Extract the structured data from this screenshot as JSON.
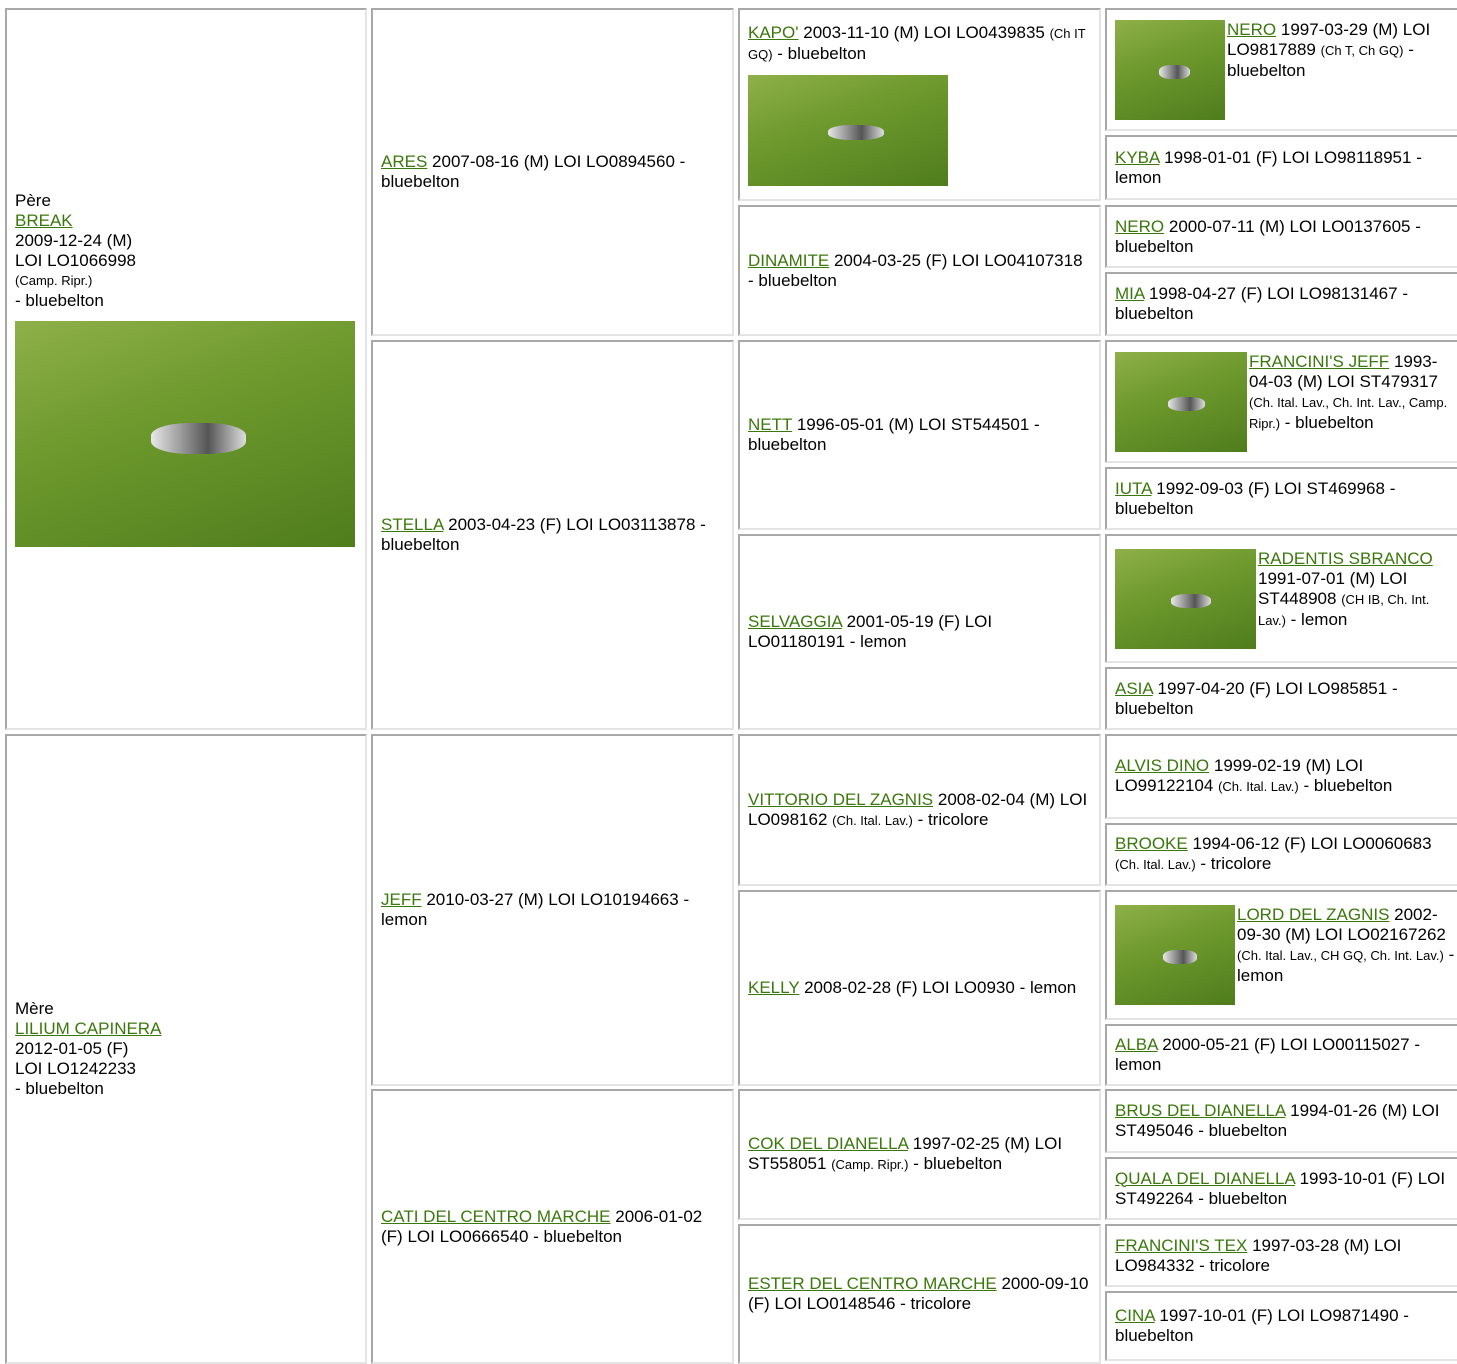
{
  "pedigree": {
    "parents": [
      {
        "label": "Père",
        "name": "BREAK",
        "date": "2009-12-24 (M)",
        "reg": "LOI LO1066998",
        "titles": "(Camp. Ripr.)",
        "color": "- bluebelton"
      },
      {
        "label": "Mère",
        "name": "LILIUM CAPINERA",
        "date": "2012-01-05 (F)",
        "reg": "LOI LO1242233",
        "color": "- bluebelton"
      }
    ],
    "grandparents": [
      {
        "name": "ARES",
        "date": "2007-08-16 (M)",
        "reg": "LOI LO0894560",
        "color": "- bluebelton"
      },
      {
        "name": "STELLA",
        "date": "2003-04-23 (F)",
        "reg": "LOI LO03113878",
        "color": "- bluebelton"
      },
      {
        "name": "JEFF",
        "date": "2010-03-27 (M)",
        "reg": "LOI LO10194663",
        "color": "- lemon"
      },
      {
        "name": "CATI DEL CENTRO MARCHE",
        "date": "2006-01-02 (F)",
        "reg": "LOI LO0666540",
        "color": "- bluebelton"
      }
    ],
    "great_grandparents": [
      {
        "name": "KAPO'",
        "date": "2003-11-10 (M)",
        "reg": "LOI LO0439835",
        "titles": "(Ch IT GQ)",
        "color": "- bluebelton"
      },
      {
        "name": "DINAMITE",
        "date": "2004-03-25 (F)",
        "reg": "LOI LO04107318",
        "color": "- bluebelton"
      },
      {
        "name": "NETT",
        "date": "1996-05-01 (M)",
        "reg": "LOI ST544501",
        "color": "- bluebelton"
      },
      {
        "name": "SELVAGGIA",
        "date": "2001-05-19 (F)",
        "reg": "LOI LO01180191",
        "color": "- lemon"
      },
      {
        "name": "VITTORIO DEL ZAGNIS",
        "date": "2008-02-04 (M)",
        "reg": "LOI LO098162",
        "titles": "(Ch. Ital. Lav.)",
        "color": "- tricolore"
      },
      {
        "name": "KELLY",
        "date": "2008-02-28 (F)",
        "reg": "LOI LO0930",
        "color": "- lemon"
      },
      {
        "name": "COK DEL DIANELLA",
        "date": "1997-02-25 (M)",
        "reg": "LOI ST558051",
        "titles": "(Camp. Ripr.)",
        "color": "- bluebelton"
      },
      {
        "name": "ESTER DEL CENTRO MARCHE",
        "date": "2000-09-10 (F)",
        "reg": "LOI LO0148546",
        "color": "- tricolore"
      }
    ],
    "great_great_grandparents": [
      {
        "name": "NERO",
        "date": "1997-03-29 (M)",
        "reg": "LOI LO9817889",
        "titles": "(Ch T, Ch GQ)",
        "color": "- bluebelton"
      },
      {
        "name": "KYBA",
        "date": "1998-01-01 (F)",
        "reg": "LOI LO98118951",
        "color": "- lemon"
      },
      {
        "name": "NERO",
        "date": "2000-07-11 (M)",
        "reg": "LOI LO0137605",
        "color": "- bluebelton"
      },
      {
        "name": "MIA",
        "date": "1998-04-27 (F)",
        "reg": "LOI LO98131467",
        "color": "- bluebelton"
      },
      {
        "name": "FRANCINI'S JEFF",
        "date": "1993-04-03 (M)",
        "reg": "LOI ST479317",
        "titles": "(Ch. Ital. Lav., Ch. Int. Lav., Camp. Ripr.)",
        "color": "- bluebelton"
      },
      {
        "name": "IUTA",
        "date": "1992-09-03 (F)",
        "reg": "LOI ST469968",
        "color": "- bluebelton"
      },
      {
        "name": "RADENTIS SBRANCO",
        "date": "1991-07-01 (M)",
        "reg": "LOI ST448908",
        "titles": "(CH IB, Ch. Int. Lav.)",
        "color": "- lemon"
      },
      {
        "name": "ASIA",
        "date": "1997-04-20 (F)",
        "reg": "LOI LO985851",
        "color": "- bluebelton"
      },
      {
        "name": "ALVIS DINO",
        "date": "1999-02-19 (M)",
        "reg": "LOI LO99122104",
        "titles": "(Ch. Ital. Lav.)",
        "color": "- bluebelton"
      },
      {
        "name": "BROOKE",
        "date": "1994-06-12 (F)",
        "reg": "LOI LO0060683",
        "titles": "(Ch. Ital. Lav.)",
        "color": "- tricolore"
      },
      {
        "name": "LORD DEL ZAGNIS",
        "date": "2002-09-30 (M)",
        "reg": "LOI LO02167262",
        "titles": "(Ch. Ital. Lav., CH GQ, Ch. Int. Lav.)",
        "color": "- lemon"
      },
      {
        "name": "ALBA",
        "date": "2000-05-21 (F)",
        "reg": "LOI LO00115027",
        "color": "- lemon"
      },
      {
        "name": "BRUS DEL DIANELLA",
        "date": "1994-01-26 (M)",
        "reg": "LOI ST495046",
        "color": "- bluebelton"
      },
      {
        "name": "QUALA DEL DIANELLA",
        "date": "1993-10-01 (F)",
        "reg": "LOI ST492264",
        "color": "- bluebelton"
      },
      {
        "name": "FRANCINI'S TEX",
        "date": "1997-03-28 (M)",
        "reg": "LOI LO984332",
        "color": "- tricolore"
      },
      {
        "name": "CINA",
        "date": "1997-10-01 (F)",
        "reg": "LOI LO9871490",
        "color": "- bluebelton"
      }
    ]
  }
}
